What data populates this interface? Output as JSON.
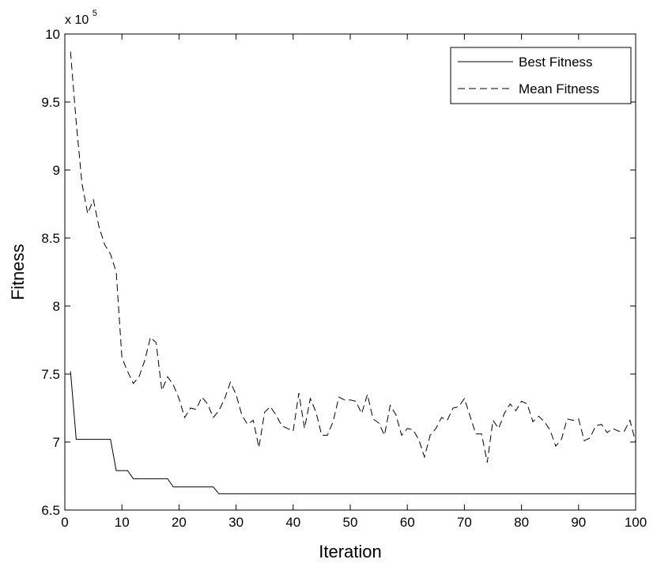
{
  "chart_data": {
    "type": "line",
    "xlabel": "Iteration",
    "ylabel": "Fitness",
    "y_multiplier_base": "x 10",
    "y_multiplier_exponent": "5",
    "xlim": [
      0,
      100
    ],
    "ylim": [
      6.5,
      10
    ],
    "x_ticks": [
      "0",
      "10",
      "20",
      "30",
      "40",
      "50",
      "60",
      "70",
      "80",
      "90",
      "100"
    ],
    "y_ticks": [
      "6.5",
      "7",
      "7.5",
      "8",
      "8.5",
      "9",
      "9.5",
      "10"
    ],
    "legend_position": "top-right",
    "series": [
      {
        "name": "Best Fitness",
        "style": "solid",
        "x": [
          1,
          2,
          3,
          8,
          9,
          11,
          12,
          18,
          19,
          26,
          27,
          100
        ],
        "y": [
          7.52,
          7.02,
          7.02,
          7.02,
          6.79,
          6.79,
          6.73,
          6.73,
          6.67,
          6.67,
          6.62,
          6.62
        ]
      },
      {
        "name": "Mean Fitness",
        "style": "dashed",
        "x": [
          1,
          2,
          3,
          4,
          5,
          6,
          7,
          8,
          9,
          10,
          11,
          12,
          13,
          14,
          15,
          16,
          17,
          18,
          19,
          20,
          21,
          22,
          23,
          24,
          25,
          26,
          27,
          28,
          29,
          30,
          31,
          32,
          33,
          34,
          35,
          36,
          37,
          38,
          39,
          40,
          41,
          42,
          43,
          44,
          45,
          46,
          47,
          48,
          49,
          50,
          51,
          52,
          53,
          54,
          55,
          56,
          57,
          58,
          59,
          60,
          61,
          62,
          63,
          64,
          65,
          66,
          67,
          68,
          69,
          70,
          71,
          72,
          73,
          74,
          75,
          76,
          77,
          78,
          79,
          80,
          81,
          82,
          83,
          84,
          85,
          86,
          87,
          88,
          89,
          90,
          91,
          92,
          93,
          94,
          95,
          96,
          97,
          98,
          99,
          100
        ],
        "y": [
          9.87,
          9.35,
          8.9,
          8.68,
          8.78,
          8.58,
          8.45,
          8.38,
          8.25,
          7.62,
          7.52,
          7.43,
          7.48,
          7.6,
          7.77,
          7.73,
          7.38,
          7.48,
          7.42,
          7.32,
          7.18,
          7.25,
          7.24,
          7.33,
          7.28,
          7.18,
          7.23,
          7.32,
          7.44,
          7.35,
          7.2,
          7.13,
          7.16,
          6.96,
          7.22,
          7.26,
          7.2,
          7.12,
          7.1,
          7.08,
          7.36,
          7.1,
          7.32,
          7.22,
          7.05,
          7.05,
          7.15,
          7.33,
          7.31,
          7.31,
          7.3,
          7.21,
          7.35,
          7.17,
          7.14,
          7.05,
          7.27,
          7.2,
          7.05,
          7.1,
          7.09,
          7.02,
          6.89,
          7.05,
          7.1,
          7.18,
          7.16,
          7.25,
          7.26,
          7.32,
          7.19,
          7.06,
          7.06,
          6.85,
          7.16,
          7.1,
          7.21,
          7.28,
          7.23,
          7.3,
          7.28,
          7.15,
          7.19,
          7.15,
          7.09,
          6.97,
          7.02,
          7.17,
          7.16,
          7.17,
          7.01,
          7.03,
          7.12,
          7.13,
          7.07,
          7.1,
          7.08,
          7.08,
          7.16,
          7.0
        ]
      }
    ]
  }
}
